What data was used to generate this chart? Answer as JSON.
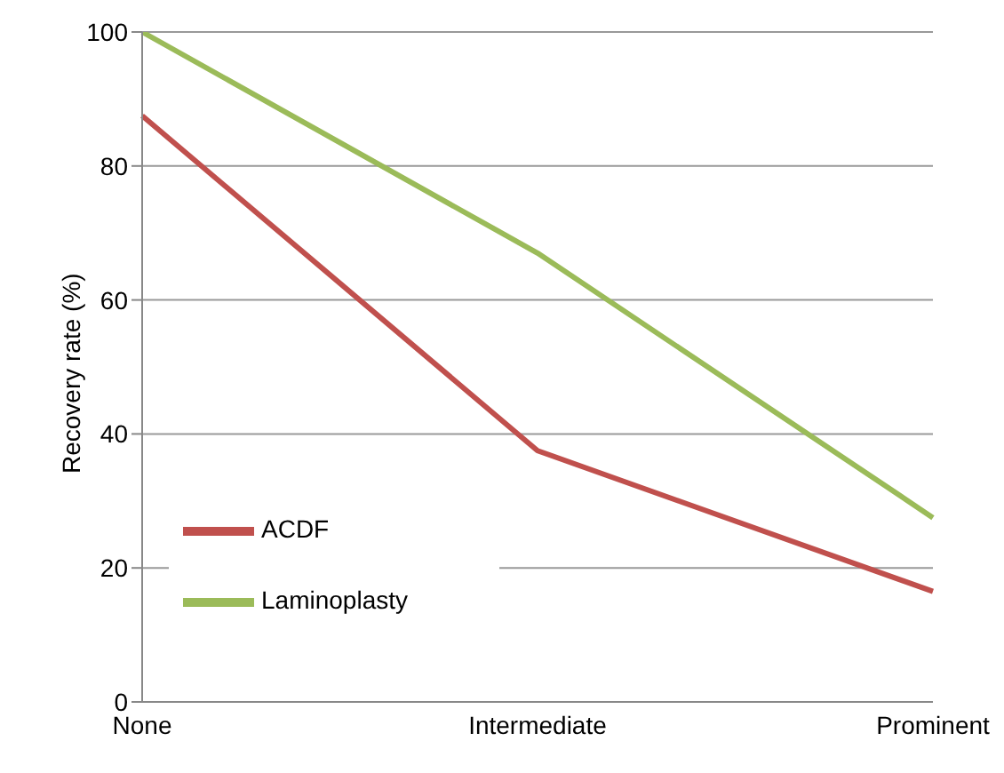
{
  "chart_data": {
    "type": "line",
    "ylabel": "Recovery rate (%)",
    "categories": [
      "None",
      "Intermediate",
      "Prominent"
    ],
    "series": [
      {
        "name": "ACDF",
        "color": "#c0504d",
        "values": [
          87.5,
          37.5,
          16.5
        ]
      },
      {
        "name": "Laminoplasty",
        "color": "#9bbb59",
        "values": [
          100,
          67,
          27.5
        ]
      }
    ],
    "ylim": [
      0,
      100
    ],
    "yticks": [
      0,
      20,
      40,
      60,
      80,
      100
    ],
    "grid": "y",
    "legend": "bottom left",
    "marker": "none",
    "line_style": "solid"
  }
}
